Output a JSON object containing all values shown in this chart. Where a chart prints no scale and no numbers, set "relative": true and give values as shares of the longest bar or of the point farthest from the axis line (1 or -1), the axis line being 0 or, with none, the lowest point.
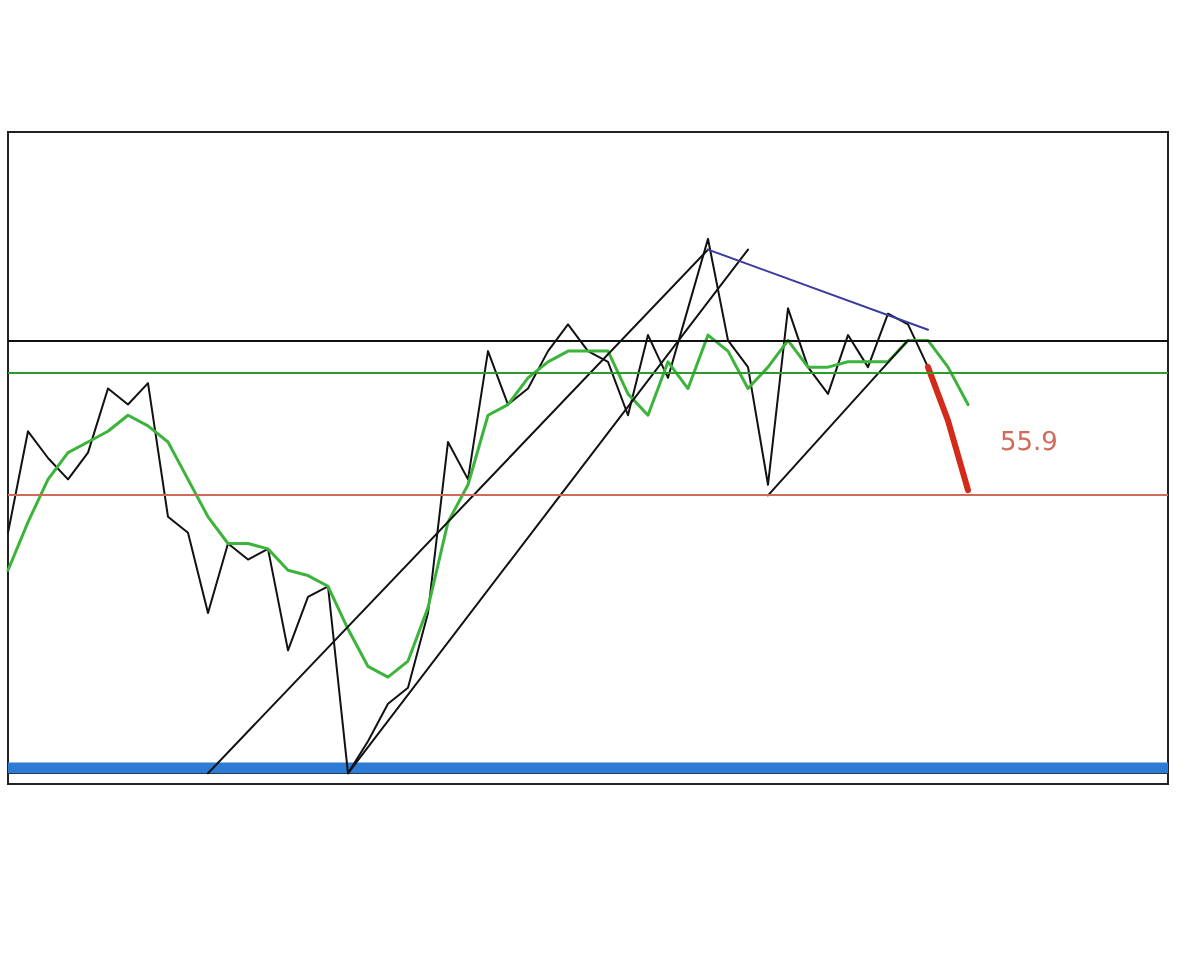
{
  "chart_data": {
    "type": "line",
    "relative": true,
    "tick_labels": false,
    "grid": false,
    "marker": "none",
    "line_style": "solid",
    "categories": [
      null,
      null,
      null,
      null,
      null,
      null,
      null,
      null,
      null,
      null,
      null,
      null,
      null,
      null,
      null,
      null,
      null,
      null,
      null,
      null,
      null,
      null,
      null,
      null,
      null,
      null,
      null,
      null,
      null,
      null,
      null,
      null,
      null,
      null,
      null,
      null,
      null,
      null,
      null,
      null,
      null,
      null,
      null,
      null,
      null,
      null,
      null,
      null,
      null,
      null,
      null,
      null,
      null,
      null,
      null,
      null,
      null,
      null,
      null
    ],
    "series": [
      {
        "color": "#111111",
        "values": [
          0.45,
          0.64,
          0.59,
          0.55,
          0.6,
          0.72,
          0.69,
          0.73,
          0.48,
          0.45,
          0.3,
          0.43,
          0.4,
          0.42,
          0.23,
          0.33,
          0.35,
          0,
          0.06,
          0.13,
          0.16,
          0.3,
          0.62,
          0.55,
          0.79,
          0.69,
          0.72,
          0.79,
          0.84,
          0.79,
          0.77,
          0.67,
          0.82,
          0.74,
          0.87,
          1,
          0.81,
          0.76,
          0.54,
          0.87,
          0.76,
          0.71,
          0.82,
          0.76,
          0.86,
          0.84,
          0.76,
          null,
          null,
          null,
          null,
          null,
          null,
          null,
          null,
          null,
          null,
          null,
          null
        ]
      },
      {
        "color": "#3cb43c",
        "values": [
          0.38,
          0.47,
          0.55,
          0.6,
          0.62,
          0.64,
          0.67,
          0.65,
          0.62,
          0.55,
          0.48,
          0.43,
          0.43,
          0.42,
          0.38,
          0.37,
          0.35,
          0.27,
          0.2,
          0.18,
          0.21,
          0.31,
          0.47,
          0.54,
          0.67,
          0.69,
          0.74,
          0.77,
          0.79,
          0.79,
          0.79,
          0.71,
          0.67,
          0.77,
          0.72,
          0.82,
          0.79,
          0.72,
          0.76,
          0.81,
          0.76,
          0.76,
          0.77,
          0.77,
          0.77,
          0.81,
          0.81,
          0.76,
          0.69,
          null,
          null,
          null,
          null,
          null,
          null,
          null,
          null,
          null,
          null
        ]
      },
      {
        "color": "#d42a1a",
        "values": [
          null,
          null,
          null,
          null,
          null,
          null,
          null,
          null,
          null,
          null,
          null,
          null,
          null,
          null,
          null,
          null,
          null,
          null,
          null,
          null,
          null,
          null,
          null,
          null,
          null,
          null,
          null,
          null,
          null,
          null,
          null,
          null,
          null,
          null,
          null,
          null,
          null,
          null,
          null,
          null,
          null,
          null,
          null,
          null,
          null,
          null,
          0.76,
          0.66,
          0.53,
          null,
          null,
          null,
          null,
          null,
          null,
          null,
          null,
          null,
          null
        ]
      },
      {
        "color": "#111111",
        "values": [
          null,
          null,
          null,
          null,
          null,
          null,
          null,
          null,
          null,
          null,
          null,
          null,
          null,
          null,
          null,
          null,
          null,
          0,
          null,
          null,
          null,
          null,
          null,
          null,
          null,
          null,
          null,
          null,
          null,
          null,
          null,
          null,
          null,
          null,
          null,
          null,
          null,
          0.98,
          null,
          null,
          null,
          null,
          null,
          null,
          null,
          null,
          null,
          null,
          null,
          null,
          null,
          null,
          null,
          null,
          null,
          null,
          null,
          null,
          null
        ]
      },
      {
        "color": "#111111",
        "values": [
          null,
          null,
          null,
          null,
          null,
          null,
          null,
          null,
          null,
          null,
          0,
          null,
          null,
          null,
          null,
          null,
          null,
          null,
          null,
          null,
          null,
          null,
          null,
          null,
          null,
          null,
          null,
          null,
          null,
          null,
          null,
          null,
          null,
          null,
          null,
          0.98,
          null,
          null,
          null,
          null,
          null,
          null,
          null,
          null,
          null,
          null,
          null,
          null,
          null,
          null,
          null,
          null,
          null,
          null,
          null,
          null,
          null,
          null,
          null
        ]
      },
      {
        "color": "#111111",
        "values": [
          null,
          null,
          null,
          null,
          null,
          null,
          null,
          null,
          null,
          null,
          null,
          null,
          null,
          null,
          null,
          null,
          null,
          null,
          null,
          null,
          null,
          null,
          null,
          null,
          null,
          null,
          null,
          null,
          null,
          null,
          null,
          null,
          null,
          null,
          null,
          null,
          null,
          null,
          0.52,
          null,
          null,
          null,
          null,
          null,
          null,
          0.81,
          null,
          null,
          null,
          null,
          null,
          null,
          null,
          null,
          null,
          null,
          null,
          null,
          null
        ]
      },
      {
        "color": "#3b3b9e",
        "values": [
          null,
          null,
          null,
          null,
          null,
          null,
          null,
          null,
          null,
          null,
          null,
          null,
          null,
          null,
          null,
          null,
          null,
          null,
          null,
          null,
          null,
          null,
          null,
          null,
          null,
          null,
          null,
          null,
          null,
          null,
          null,
          null,
          null,
          null,
          null,
          0.98,
          null,
          null,
          null,
          null,
          null,
          null,
          null,
          null,
          null,
          null,
          0.83,
          null,
          null,
          null,
          null,
          null,
          null,
          null,
          null,
          null,
          null,
          null,
          null
        ]
      }
    ],
    "ref_lines": [
      {
        "axis": "y",
        "value": 0.81,
        "color": "#111111"
      },
      {
        "axis": "y",
        "value": 0.75,
        "color": "#2e9a2e"
      },
      {
        "axis": "y",
        "value": 0.52,
        "color": "#d06a5a"
      }
    ],
    "annotations": [
      "55.9"
    ],
    "bands": [
      {
        "axis": "y",
        "from": 0,
        "to": 0.02,
        "color": "#2e7bd6"
      }
    ]
  }
}
